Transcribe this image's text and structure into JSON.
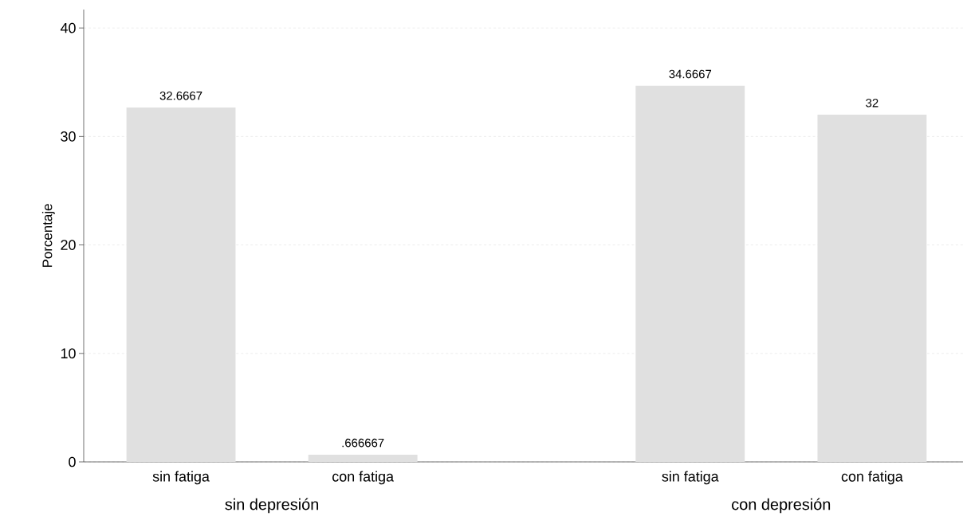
{
  "chart_data": {
    "type": "bar",
    "ylabel": "Porcentaje",
    "categories": [
      "sin fatiga",
      "con fatiga",
      "sin fatiga",
      "con fatiga"
    ],
    "values": [
      32.6667,
      0.666667,
      34.6667,
      32
    ],
    "value_labels": [
      "32.6667",
      ".666667",
      "34.6667",
      "32"
    ],
    "color": "#e0e0e0",
    "ylim": [
      0,
      41.7
    ],
    "yticks": [
      0,
      10,
      20,
      30,
      40
    ],
    "grid": "y",
    "annotations": [
      "sin depresión",
      "con depresión"
    ]
  }
}
